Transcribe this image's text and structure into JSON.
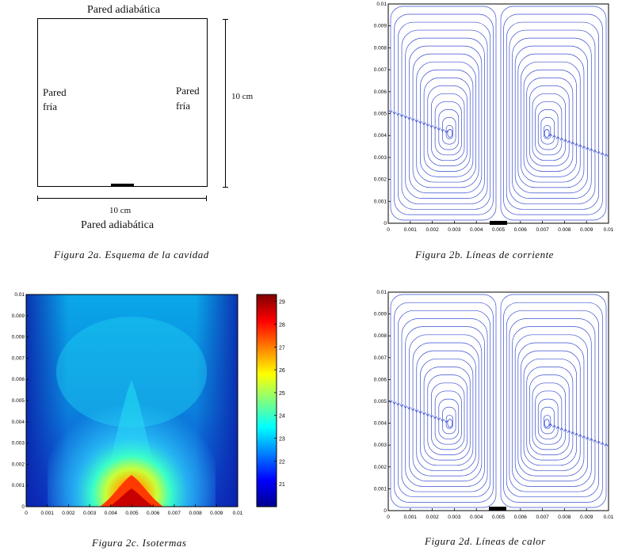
{
  "fig_a": {
    "top_label": "Pared adiabática",
    "bottom_label": "Pared adiabática",
    "left_wall": [
      "Pared",
      "fría"
    ],
    "right_wall": [
      "Pared",
      "fría"
    ],
    "dim_width": "10 cm",
    "dim_height": "10 cm",
    "caption": "Figura 2a. Esquema de la cavidad"
  },
  "fig_b": {
    "caption": "Figura 2b. Líneas de corriente"
  },
  "fig_c": {
    "caption": "Figura 2c. Isotermas"
  },
  "fig_d": {
    "caption": "Figura 2d. Líneas de calor"
  },
  "chart_data": [
    {
      "type": "streamline",
      "panel": "2b",
      "xlim": [
        0,
        0.01
      ],
      "ylim": [
        0,
        0.01
      ],
      "xticks": [
        "0",
        "0.001",
        "0.002",
        "0.003",
        "0.004",
        "0.005",
        "0.006",
        "0.007",
        "0.008",
        "0.009",
        "0.01"
      ],
      "yticks": [
        "0",
        "0.001",
        "0.002",
        "0.003",
        "0.004",
        "0.005",
        "0.006",
        "0.007",
        "0.008",
        "0.009",
        "0.01"
      ],
      "vortex_centers": [
        [
          0.0028,
          0.0041
        ],
        [
          0.0072,
          0.0041
        ]
      ],
      "line_color": "#3a4fd0"
    },
    {
      "type": "heatmap",
      "panel": "2c",
      "xlim": [
        0,
        0.01
      ],
      "ylim": [
        0,
        0.01
      ],
      "xticks": [
        "0",
        "0.001",
        "0.002",
        "0.003",
        "0.004",
        "0.005",
        "0.006",
        "0.007",
        "0.008",
        "0.009",
        "0.01"
      ],
      "yticks": [
        "0",
        "0.001",
        "0.002",
        "0.003",
        "0.004",
        "0.005",
        "0.006",
        "0.007",
        "0.008",
        "0.009",
        "0.01"
      ],
      "colorbar_range": [
        20,
        29.3
      ],
      "colorbar_ticks": [
        "21",
        "22",
        "23",
        "24",
        "25",
        "26",
        "27",
        "28",
        "29"
      ],
      "hot_spot_x": 0.005
    },
    {
      "type": "streamline",
      "panel": "2d",
      "xlim": [
        0,
        0.01
      ],
      "ylim": [
        0,
        0.01
      ],
      "xticks": [
        "0",
        "0.001",
        "0.002",
        "0.003",
        "0.004",
        "0.005",
        "0.006",
        "0.007",
        "0.008",
        "0.009",
        "0.01"
      ],
      "yticks": [
        "0",
        "0.001",
        "0.002",
        "0.003",
        "0.004",
        "0.005",
        "0.006",
        "0.007",
        "0.008",
        "0.009",
        "0.01"
      ],
      "vortex_centers": [
        [
          0.0028,
          0.004
        ],
        [
          0.0072,
          0.004
        ]
      ],
      "line_color": "#3a4fd0"
    }
  ]
}
